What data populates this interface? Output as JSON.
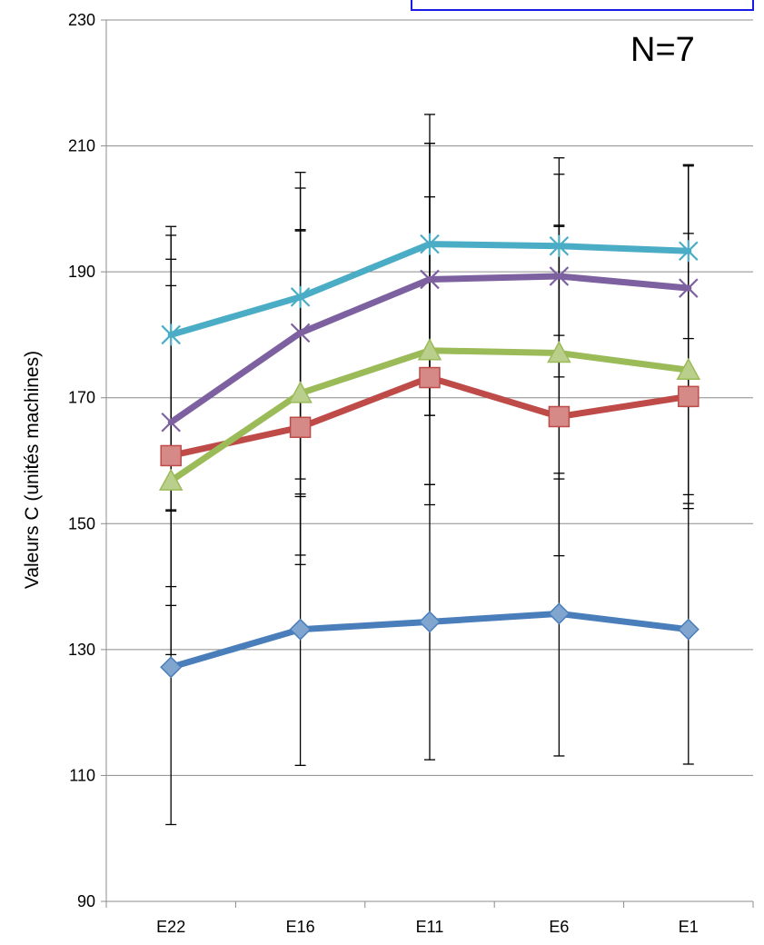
{
  "chart_data": {
    "type": "line",
    "title": "",
    "xlabel": "",
    "ylabel": "Valeurs C (unités machines)",
    "annotation": "N=7",
    "categories": [
      "E22",
      "E16",
      "E11",
      "E6",
      "E1"
    ],
    "ylim": [
      90,
      230
    ],
    "yticks": [
      90,
      110,
      130,
      150,
      170,
      190,
      210,
      230
    ],
    "grid": true,
    "legend": "top-right (partially visible, blue bordered box, no visible text)",
    "series": [
      {
        "color": "#4a7ebb",
        "marker": "diamond",
        "values": [
          127.2,
          133.2,
          134.4,
          135.7,
          133.2
        ],
        "err_low": [
          102.2,
          111.6,
          112.5,
          113.1,
          111.8
        ],
        "err_high": [
          152.2,
          154.7,
          156.2,
          158.0,
          154.6
        ]
      },
      {
        "color": "#be4b48",
        "marker": "square",
        "values": [
          160.8,
          165.3,
          173.2,
          167.0,
          170.2
        ],
        "err_low": [
          129.2,
          145.0,
          153.0,
          144.9,
          153.2
        ],
        "err_high": [
          192.0,
          196.5,
          210.4,
          197.4,
          207.0
        ]
      },
      {
        "color": "#9bbb59",
        "marker": "triangle",
        "values": [
          156.8,
          170.7,
          177.5,
          177.1,
          174.4
        ],
        "err_low": [
          137.0,
          143.5,
          156.2,
          157.1,
          152.4
        ],
        "err_high": [
          187.8,
          203.3,
          201.9,
          197.2,
          196.1
        ]
      },
      {
        "color": "#7d60a0",
        "marker": "x",
        "values": [
          166.1,
          180.3,
          188.8,
          189.3,
          187.4
        ],
        "err_low": [
          140.0,
          154.3,
          167.2,
          173.3,
          168.6
        ],
        "err_high": [
          195.8,
          205.8,
          210.4,
          205.5,
          206.8
        ]
      },
      {
        "color": "#4bacc6",
        "marker": "star",
        "values": [
          180.0,
          186.0,
          194.4,
          194.1,
          193.3
        ],
        "err_low": [
          152.0,
          157.1,
          167.2,
          179.9,
          179.4
        ],
        "err_high": [
          197.2,
          196.7,
          215.0,
          208.1,
          207.0
        ]
      }
    ]
  }
}
